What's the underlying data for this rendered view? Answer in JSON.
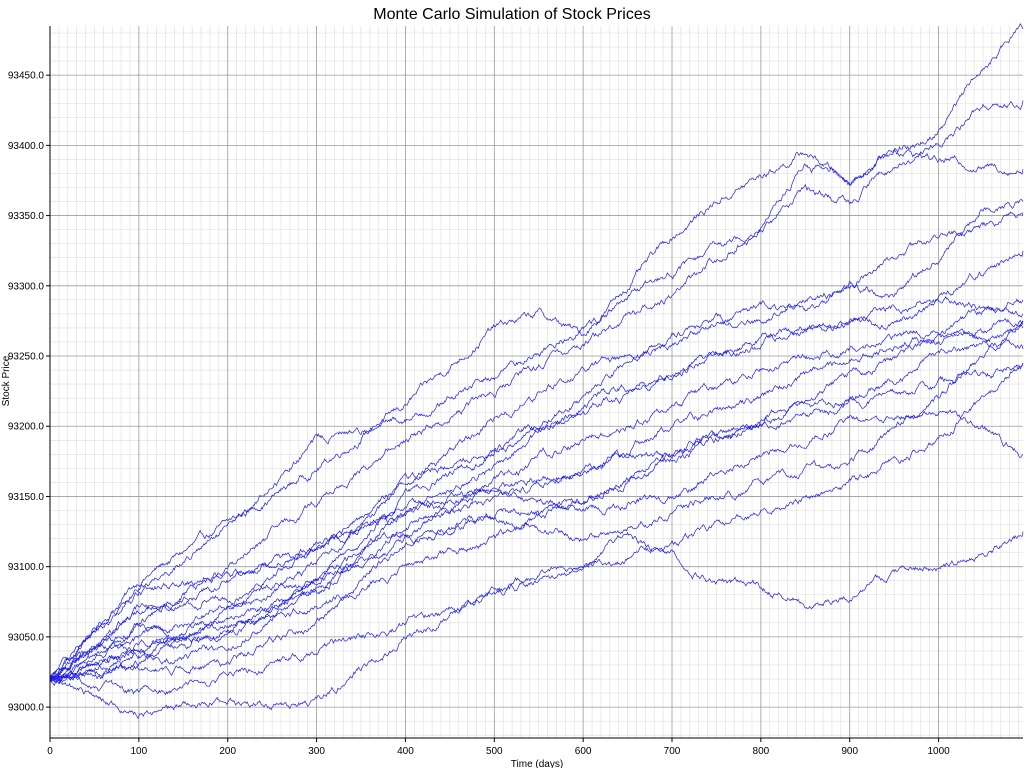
{
  "chart_data": {
    "type": "line",
    "title": "Monte Carlo Simulation of Stock Prices",
    "xlabel": "Time (days)",
    "ylabel": "Stock Price",
    "xlim": [
      0,
      1095
    ],
    "ylim": [
      92978,
      93485
    ],
    "x_ticks": [
      0,
      100,
      200,
      300,
      400,
      500,
      600,
      700,
      800,
      900,
      1000
    ],
    "y_ticks": [
      93000.0,
      93050.0,
      93100.0,
      93150.0,
      93200.0,
      93250.0,
      93300.0,
      93350.0,
      93400.0,
      93450.0
    ],
    "y_tick_labels": [
      "93000.0",
      "93050.0",
      "93100.0",
      "93150.0",
      "93200.0",
      "93250.0",
      "93300.0",
      "93350.0",
      "93400.0",
      "93450.0"
    ],
    "grid": true,
    "minor_grid": true,
    "legend": "none",
    "line_color": "#1f1fe6",
    "grid_major_color": "#9a9a9a",
    "grid_minor_color": "#dcdcdc",
    "start_value": 93020,
    "series": [
      {
        "x": [
          0,
          100,
          200,
          300,
          400,
          500,
          550,
          600,
          650,
          700,
          750,
          800,
          850,
          900,
          950,
          1000,
          1050,
          1095
        ],
        "values": [
          93020,
          93090,
          93130,
          93170,
          93215,
          93270,
          93280,
          93265,
          93300,
          93335,
          93360,
          93378,
          93395,
          93375,
          93398,
          93390,
          93385,
          93383
        ]
      },
      {
        "x": [
          0,
          100,
          200,
          300,
          400,
          500,
          600,
          650,
          700,
          750,
          800,
          850,
          900,
          950,
          1000,
          1050,
          1095
        ],
        "values": [
          93020,
          93085,
          93125,
          93190,
          93205,
          93235,
          93270,
          93290,
          93310,
          93325,
          93345,
          93385,
          93375,
          93395,
          93410,
          93455,
          93483
        ]
      },
      {
        "x": [
          0,
          100,
          200,
          300,
          400,
          500,
          600,
          700,
          750,
          800,
          850,
          900,
          950,
          1000,
          1050,
          1095
        ],
        "values": [
          93020,
          93060,
          93100,
          93145,
          93190,
          93225,
          93260,
          93295,
          93320,
          93340,
          93370,
          93360,
          93385,
          93400,
          93430,
          93432
        ]
      },
      {
        "x": [
          0,
          100,
          200,
          300,
          400,
          500,
          600,
          700,
          750,
          800,
          850,
          900,
          950,
          1000,
          1095
        ],
        "values": [
          93020,
          93070,
          93080,
          93110,
          93160,
          93205,
          93240,
          93260,
          93275,
          93275,
          93290,
          93300,
          93320,
          93335,
          93350
        ]
      },
      {
        "x": [
          0,
          100,
          200,
          300,
          400,
          500,
          600,
          700,
          800,
          850,
          900,
          950,
          1000,
          1050,
          1095
        ],
        "values": [
          93020,
          93030,
          93070,
          93100,
          93160,
          93185,
          93220,
          93265,
          93285,
          93280,
          93300,
          93290,
          93320,
          93355,
          93360
        ]
      },
      {
        "x": [
          0,
          100,
          200,
          300,
          400,
          500,
          600,
          700,
          800,
          900,
          950,
          1000,
          1095
        ],
        "values": [
          93020,
          93045,
          93065,
          93080,
          93140,
          93170,
          93215,
          93240,
          93260,
          93275,
          93270,
          93290,
          93325
        ]
      },
      {
        "x": [
          0,
          100,
          200,
          300,
          400,
          500,
          600,
          700,
          800,
          900,
          1000,
          1095
        ],
        "values": [
          93020,
          93055,
          93050,
          93090,
          93150,
          93180,
          93210,
          93235,
          93265,
          93275,
          93290,
          93280
        ]
      },
      {
        "x": [
          0,
          100,
          200,
          300,
          400,
          500,
          600,
          700,
          800,
          900,
          1000,
          1095
        ],
        "values": [
          93020,
          93035,
          93040,
          93085,
          93125,
          93160,
          93190,
          93215,
          93240,
          93255,
          93270,
          93290
        ]
      },
      {
        "x": [
          0,
          100,
          200,
          300,
          400,
          500,
          600,
          700,
          800,
          900,
          1000,
          1095
        ],
        "values": [
          93020,
          93040,
          93055,
          93090,
          93130,
          93150,
          93165,
          93200,
          93220,
          93250,
          93265,
          93255
        ]
      },
      {
        "x": [
          0,
          100,
          200,
          300,
          400,
          500,
          600,
          700,
          800,
          900,
          1000,
          1095
        ],
        "values": [
          93020,
          93025,
          93030,
          93060,
          93120,
          93135,
          93145,
          93180,
          93205,
          93220,
          93250,
          93270
        ]
      },
      {
        "x": [
          0,
          100,
          200,
          300,
          400,
          500,
          600,
          700,
          800,
          900,
          1000,
          1050,
          1095
        ],
        "values": [
          93020,
          93080,
          93095,
          93110,
          93145,
          93155,
          93140,
          93150,
          93180,
          93205,
          93210,
          93200,
          93180
        ]
      },
      {
        "x": [
          0,
          100,
          200,
          300,
          400,
          500,
          600,
          700,
          800,
          900,
          1000,
          1050,
          1095
        ],
        "values": [
          93020,
          93050,
          93070,
          93090,
          93120,
          93135,
          93120,
          93140,
          93160,
          93175,
          93220,
          93250,
          93275
        ]
      },
      {
        "x": [
          0,
          100,
          200,
          300,
          400,
          500,
          600,
          700,
          800,
          900,
          1000,
          1095
        ],
        "values": [
          93020,
          93010,
          93020,
          93040,
          93060,
          93080,
          93100,
          93115,
          93140,
          93160,
          93190,
          93245
        ]
      },
      {
        "x": [
          0,
          100,
          200,
          300,
          400,
          500,
          550,
          600,
          650,
          700,
          750,
          800,
          850,
          900,
          950,
          1000,
          1050,
          1095
        ],
        "values": [
          93020,
          92995,
          93000,
          93005,
          93050,
          93080,
          93095,
          93100,
          93125,
          93110,
          93090,
          93085,
          93075,
          93078,
          93095,
          93100,
          93105,
          93125
        ]
      },
      {
        "x": [
          0,
          100,
          200,
          300,
          400,
          500,
          600,
          700,
          800,
          900,
          1000,
          1095
        ],
        "values": [
          93020,
          93040,
          93060,
          93070,
          93100,
          93120,
          93150,
          93175,
          93205,
          93235,
          93260,
          93275
        ]
      },
      {
        "x": [
          0,
          100,
          200,
          300,
          400,
          500,
          600,
          700,
          800,
          900,
          1000,
          1095
        ],
        "values": [
          93020,
          93065,
          93090,
          93115,
          93135,
          93155,
          93170,
          93180,
          93200,
          93215,
          93230,
          93245
        ]
      }
    ]
  }
}
